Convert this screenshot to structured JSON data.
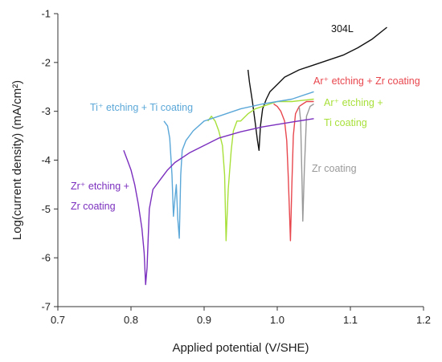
{
  "chart_data": {
    "type": "line",
    "title": "",
    "xlabel": "Applied potential (V/SHE)",
    "ylabel": "Log(current density) (mA/cm²)",
    "xlim": [
      0.7,
      1.2
    ],
    "ylim": [
      -7,
      -1
    ],
    "x_ticks": [
      "0.7",
      "0.8",
      "0.9",
      "1.0",
      "1.1",
      "1.2"
    ],
    "y_ticks": [
      "-1",
      "-2",
      "-3",
      "-4",
      "-5",
      "-6",
      "-7"
    ],
    "grid": false,
    "legend": "inline labels",
    "series": [
      {
        "name": "304L",
        "label_lines": [
          "304L"
        ],
        "color": "#111111",
        "points": [
          [
            0.96,
            -2.15
          ],
          [
            0.962,
            -2.4
          ],
          [
            0.966,
            -2.8
          ],
          [
            0.97,
            -3.25
          ],
          [
            0.973,
            -3.6
          ],
          [
            0.975,
            -3.8
          ],
          [
            0.977,
            -3.3
          ],
          [
            0.98,
            -2.95
          ],
          [
            0.985,
            -2.75
          ],
          [
            0.99,
            -2.6
          ],
          [
            1.0,
            -2.45
          ],
          [
            1.01,
            -2.3
          ],
          [
            1.03,
            -2.15
          ],
          [
            1.05,
            -2.05
          ],
          [
            1.07,
            -1.95
          ],
          [
            1.09,
            -1.85
          ],
          [
            1.11,
            -1.7
          ],
          [
            1.13,
            -1.52
          ],
          [
            1.15,
            -1.28
          ]
        ]
      },
      {
        "name": "Ar⁺ etching + Zr coating",
        "label_lines": [
          "Ar⁺ etching + Zr coating"
        ],
        "color": "#e8474e",
        "points": [
          [
            0.995,
            -2.85
          ],
          [
            1.0,
            -2.9
          ],
          [
            1.005,
            -3.0
          ],
          [
            1.01,
            -3.2
          ],
          [
            1.013,
            -3.6
          ],
          [
            1.015,
            -4.3
          ],
          [
            1.017,
            -5.2
          ],
          [
            1.018,
            -5.65
          ],
          [
            1.02,
            -4.5
          ],
          [
            1.022,
            -3.5
          ],
          [
            1.025,
            -3.05
          ],
          [
            1.03,
            -2.9
          ],
          [
            1.035,
            -2.85
          ],
          [
            1.04,
            -2.8
          ],
          [
            1.045,
            -2.8
          ],
          [
            1.05,
            -2.8
          ]
        ]
      },
      {
        "name": "Ar⁺ etching + Ti coating",
        "label_lines": [
          "Ar⁺ etching +",
          "Ti coating"
        ],
        "color": "#a8e03a",
        "points": [
          [
            0.905,
            -3.2
          ],
          [
            0.91,
            -3.1
          ],
          [
            0.915,
            -3.2
          ],
          [
            0.92,
            -3.4
          ],
          [
            0.925,
            -3.7
          ],
          [
            0.928,
            -4.3
          ],
          [
            0.93,
            -5.65
          ],
          [
            0.933,
            -4.6
          ],
          [
            0.937,
            -3.8
          ],
          [
            0.94,
            -3.4
          ],
          [
            0.945,
            -3.2
          ],
          [
            0.95,
            -3.2
          ],
          [
            0.96,
            -3.05
          ],
          [
            0.97,
            -2.95
          ],
          [
            0.98,
            -2.9
          ],
          [
            0.99,
            -2.85
          ],
          [
            1.0,
            -2.8
          ],
          [
            1.02,
            -2.8
          ],
          [
            1.05,
            -2.75
          ]
        ]
      },
      {
        "name": "Zr coating",
        "label_lines": [
          "Zr coating"
        ],
        "color": "#999999",
        "points": [
          [
            1.03,
            -2.9
          ],
          [
            1.032,
            -3.2
          ],
          [
            1.034,
            -4.5
          ],
          [
            1.035,
            -5.25
          ],
          [
            1.037,
            -4.2
          ],
          [
            1.04,
            -3.1
          ],
          [
            1.045,
            -2.9
          ],
          [
            1.05,
            -2.85
          ]
        ]
      },
      {
        "name": "Ti⁺ etching + Ti coating",
        "label_lines": [
          "Ti⁺ etching + Ti coating"
        ],
        "color": "#5aa7d8",
        "points": [
          [
            0.845,
            -3.2
          ],
          [
            0.85,
            -3.3
          ],
          [
            0.853,
            -3.55
          ],
          [
            0.856,
            -4.3
          ],
          [
            0.858,
            -5.15
          ],
          [
            0.86,
            -4.8
          ],
          [
            0.862,
            -4.5
          ],
          [
            0.864,
            -5.2
          ],
          [
            0.866,
            -5.6
          ],
          [
            0.868,
            -4.3
          ],
          [
            0.87,
            -3.8
          ],
          [
            0.875,
            -3.6
          ],
          [
            0.885,
            -3.4
          ],
          [
            0.9,
            -3.2
          ],
          [
            0.92,
            -3.1
          ],
          [
            0.95,
            -2.95
          ],
          [
            0.98,
            -2.85
          ],
          [
            1.0,
            -2.8
          ],
          [
            1.02,
            -2.75
          ],
          [
            1.05,
            -2.6
          ]
        ]
      },
      {
        "name": "Zr⁺ etching + Zr coating",
        "label_lines": [
          "Zr⁺ etching +",
          "Zr coating"
        ],
        "color": "#7b2fbe",
        "points": [
          [
            0.79,
            -3.8
          ],
          [
            0.795,
            -4.0
          ],
          [
            0.8,
            -4.2
          ],
          [
            0.805,
            -4.5
          ],
          [
            0.81,
            -4.9
          ],
          [
            0.815,
            -5.4
          ],
          [
            0.818,
            -5.9
          ],
          [
            0.82,
            -6.55
          ],
          [
            0.822,
            -6.2
          ],
          [
            0.825,
            -5.0
          ],
          [
            0.83,
            -4.6
          ],
          [
            0.84,
            -4.4
          ],
          [
            0.85,
            -4.2
          ],
          [
            0.86,
            -4.05
          ],
          [
            0.88,
            -3.85
          ],
          [
            0.9,
            -3.7
          ],
          [
            0.92,
            -3.55
          ],
          [
            0.95,
            -3.42
          ],
          [
            0.98,
            -3.32
          ],
          [
            1.0,
            -3.27
          ],
          [
            1.02,
            -3.22
          ],
          [
            1.05,
            -3.15
          ]
        ]
      }
    ]
  }
}
